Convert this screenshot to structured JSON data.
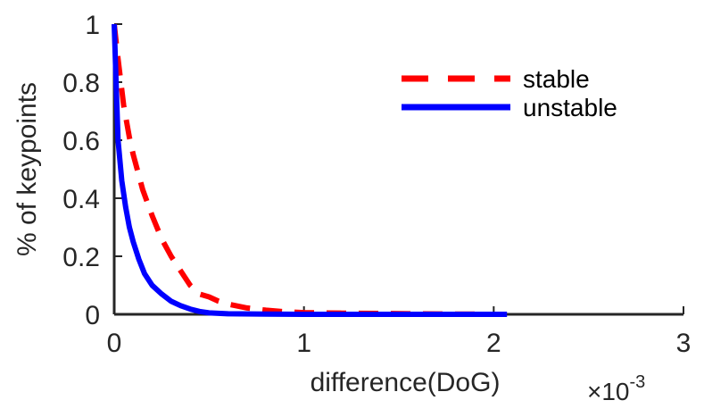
{
  "chart_data": {
    "type": "line",
    "xlabel": "difference(DoG)",
    "ylabel": "% of keypoints",
    "x_multiplier": {
      "base": "×10",
      "exponent": "-3"
    },
    "xlim": [
      0,
      3
    ],
    "ylim": [
      0,
      1
    ],
    "xticks": [
      0,
      1,
      2,
      3
    ],
    "yticks": [
      0,
      0.2,
      0.4,
      0.6,
      0.8,
      1
    ],
    "ytick_labels": [
      "0",
      "0.2",
      "0.4",
      "0.6",
      "0.8",
      "1"
    ],
    "xtick_labels": [
      "0",
      "1",
      "2",
      "3"
    ],
    "grid": false,
    "legend_position": "top-right",
    "series": [
      {
        "name": "stable",
        "color": "#ff0000",
        "style": "dashed",
        "x": [
          0,
          0.02,
          0.05,
          0.08,
          0.1,
          0.15,
          0.2,
          0.25,
          0.3,
          0.35,
          0.4,
          0.45,
          0.5,
          0.55,
          0.6,
          0.7,
          0.8,
          0.9,
          1.0,
          1.2,
          1.4,
          1.6,
          1.8,
          1.95
        ],
        "y": [
          1.0,
          0.88,
          0.72,
          0.61,
          0.55,
          0.43,
          0.34,
          0.26,
          0.2,
          0.15,
          0.1,
          0.07,
          0.06,
          0.045,
          0.035,
          0.022,
          0.014,
          0.009,
          0.006,
          0.004,
          0.003,
          0.002,
          0.001,
          0.001
        ]
      },
      {
        "name": "unstable",
        "color": "#0000ff",
        "style": "solid",
        "x": [
          0,
          0.01,
          0.02,
          0.04,
          0.06,
          0.08,
          0.1,
          0.13,
          0.16,
          0.2,
          0.25,
          0.3,
          0.35,
          0.4,
          0.45,
          0.5,
          0.6,
          0.8,
          1.0,
          1.5,
          2.07
        ],
        "y": [
          1.0,
          0.8,
          0.6,
          0.46,
          0.37,
          0.3,
          0.25,
          0.19,
          0.14,
          0.1,
          0.07,
          0.045,
          0.03,
          0.018,
          0.01,
          0.005,
          0.002,
          0.001,
          0.0,
          0.0,
          0.0
        ]
      }
    ]
  }
}
